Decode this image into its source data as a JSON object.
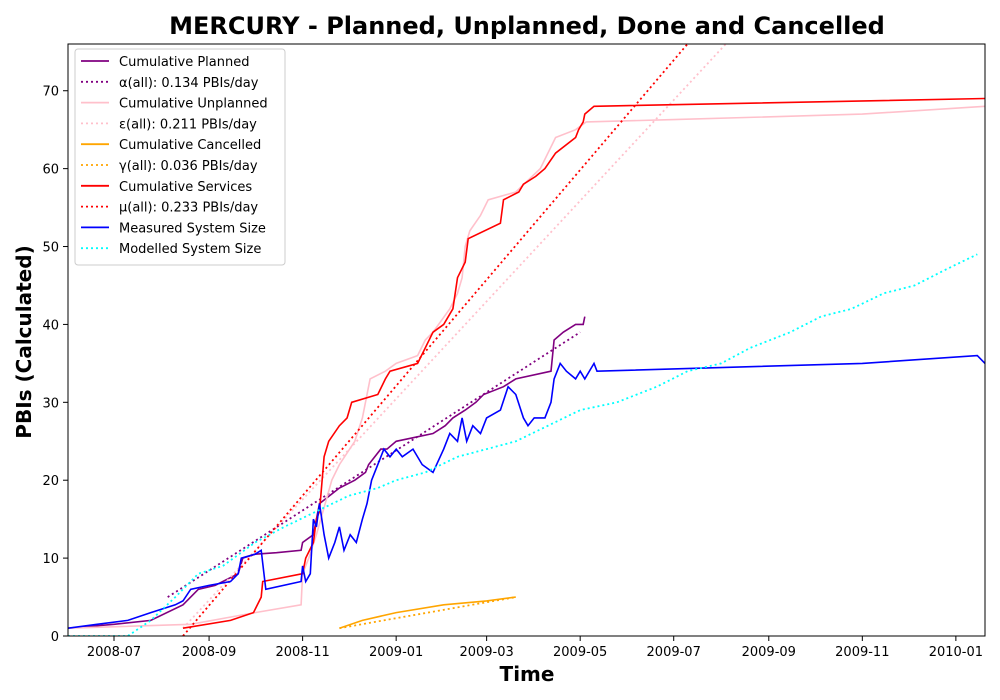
{
  "chart_data": {
    "type": "line",
    "title": "MERCURY - Planned, Unplanned, Done  and Cancelled",
    "xlabel": "Time",
    "ylabel": "PBIs (Calculated)",
    "xlim": [
      "2008-06-01",
      "2010-01-20"
    ],
    "ylim": [
      0,
      76
    ],
    "xticks": [
      "2008-07",
      "2008-09",
      "2008-11",
      "2009-01",
      "2009-03",
      "2009-05",
      "2009-07",
      "2009-09",
      "2009-11",
      "2010-01"
    ],
    "yticks": [
      0,
      10,
      20,
      30,
      40,
      50,
      60,
      70
    ],
    "legend_position": "top-left",
    "grid": false,
    "series": [
      {
        "name": "Cumulative Planned",
        "color": "#800080",
        "style": "solid",
        "points": [
          [
            "2008-06-01",
            1
          ],
          [
            "2008-07-01",
            1.5
          ],
          [
            "2008-07-25",
            2
          ],
          [
            "2008-08-15",
            4
          ],
          [
            "2008-08-25",
            6
          ],
          [
            "2008-09-05",
            6.5
          ],
          [
            "2008-09-20",
            8
          ],
          [
            "2008-09-23",
            10
          ],
          [
            "2008-10-01",
            10.5
          ],
          [
            "2008-10-15",
            10.7
          ],
          [
            "2008-10-31",
            11
          ],
          [
            "2008-11-01",
            12
          ],
          [
            "2008-11-08",
            13
          ],
          [
            "2008-11-10",
            15
          ],
          [
            "2008-11-12",
            17
          ],
          [
            "2008-11-25",
            19
          ],
          [
            "2008-12-05",
            20
          ],
          [
            "2008-12-12",
            21
          ],
          [
            "2008-12-14",
            22
          ],
          [
            "2008-12-22",
            24
          ],
          [
            "2008-12-26",
            24
          ],
          [
            "2009-01-01",
            25
          ],
          [
            "2009-01-25",
            26
          ],
          [
            "2009-02-02",
            27
          ],
          [
            "2009-02-07",
            28
          ],
          [
            "2009-02-15",
            29
          ],
          [
            "2009-02-22",
            30
          ],
          [
            "2009-02-27",
            31
          ],
          [
            "2009-03-12",
            32
          ],
          [
            "2009-03-20",
            33
          ],
          [
            "2009-04-12",
            34
          ],
          [
            "2009-04-14",
            38
          ],
          [
            "2009-04-20",
            39
          ],
          [
            "2009-04-28",
            40
          ],
          [
            "2009-05-03",
            40
          ],
          [
            "2009-05-04",
            41
          ]
        ]
      },
      {
        "name": "α(all): 0.134 PBIs/day",
        "color": "#800080",
        "style": "dotted",
        "points": [
          [
            "2008-08-05",
            5
          ],
          [
            "2009-05-01",
            39
          ]
        ]
      },
      {
        "name": "Cumulative Unplanned",
        "color": "#ffc0cb",
        "style": "solid",
        "points": [
          [
            "2008-06-01",
            1
          ],
          [
            "2008-08-20",
            1.5
          ],
          [
            "2008-10-01",
            3
          ],
          [
            "2008-10-31",
            4
          ],
          [
            "2008-11-01",
            8
          ],
          [
            "2008-11-05",
            10
          ],
          [
            "2008-11-10",
            13
          ],
          [
            "2008-11-20",
            20
          ],
          [
            "2008-11-25",
            22
          ],
          [
            "2008-12-05",
            25
          ],
          [
            "2008-12-10",
            28
          ],
          [
            "2008-12-15",
            33
          ],
          [
            "2008-12-25",
            34
          ],
          [
            "2009-01-01",
            35
          ],
          [
            "2009-01-15",
            36
          ],
          [
            "2009-01-20",
            38
          ],
          [
            "2009-01-25",
            39
          ],
          [
            "2009-02-05",
            42
          ],
          [
            "2009-02-10",
            44
          ],
          [
            "2009-02-13",
            46
          ],
          [
            "2009-02-15",
            50
          ],
          [
            "2009-02-18",
            52
          ],
          [
            "2009-02-25",
            54
          ],
          [
            "2009-03-02",
            56
          ],
          [
            "2009-03-20",
            57
          ],
          [
            "2009-04-05",
            60
          ],
          [
            "2009-04-15",
            64
          ],
          [
            "2009-04-28",
            65
          ],
          [
            "2009-05-05",
            66
          ],
          [
            "2009-07-01",
            66.3
          ],
          [
            "2009-11-01",
            67
          ],
          [
            "2010-01-20",
            68
          ]
        ]
      },
      {
        "name": "ε(all): 0.211 PBIs/day",
        "color": "#ffc0cb",
        "style": "dotted",
        "points": [
          [
            "2008-08-15",
            1
          ],
          [
            "2009-08-04",
            76
          ]
        ]
      },
      {
        "name": "Cumulative Cancelled",
        "color": "#ffa500",
        "style": "solid",
        "points": [
          [
            "2008-11-25",
            1
          ],
          [
            "2008-12-10",
            2
          ],
          [
            "2009-01-01",
            3
          ],
          [
            "2009-02-01",
            4
          ],
          [
            "2009-03-01",
            4.5
          ],
          [
            "2009-03-20",
            5
          ]
        ]
      },
      {
        "name": "γ(all): 0.036 PBIs/day",
        "color": "#ffa500",
        "style": "dotted",
        "points": [
          [
            "2008-11-25",
            1
          ],
          [
            "2009-03-20",
            5
          ]
        ]
      },
      {
        "name": "Cumulative Services",
        "color": "#ff0000",
        "style": "solid",
        "points": [
          [
            "2008-08-15",
            1
          ],
          [
            "2008-09-15",
            2
          ],
          [
            "2008-09-30",
            3
          ],
          [
            "2008-10-05",
            5
          ],
          [
            "2008-10-06",
            7
          ],
          [
            "2008-11-01",
            8
          ],
          [
            "2008-11-03",
            10
          ],
          [
            "2008-11-08",
            12
          ],
          [
            "2008-11-10",
            15
          ],
          [
            "2008-11-12",
            16
          ],
          [
            "2008-11-15",
            23
          ],
          [
            "2008-11-18",
            25
          ],
          [
            "2008-11-25",
            27
          ],
          [
            "2008-11-30",
            28
          ],
          [
            "2008-12-03",
            30
          ],
          [
            "2008-12-20",
            31
          ],
          [
            "2008-12-25",
            33
          ],
          [
            "2008-12-28",
            34
          ],
          [
            "2009-01-15",
            35
          ],
          [
            "2009-01-20",
            37
          ],
          [
            "2009-01-25",
            39
          ],
          [
            "2009-02-01",
            40
          ],
          [
            "2009-02-07",
            42
          ],
          [
            "2009-02-10",
            46
          ],
          [
            "2009-02-15",
            48
          ],
          [
            "2009-02-17",
            51
          ],
          [
            "2009-03-10",
            53
          ],
          [
            "2009-03-12",
            56
          ],
          [
            "2009-03-22",
            57
          ],
          [
            "2009-03-25",
            58
          ],
          [
            "2009-04-02",
            59
          ],
          [
            "2009-04-08",
            60
          ],
          [
            "2009-04-15",
            62
          ],
          [
            "2009-04-28",
            64
          ],
          [
            "2009-04-30",
            65
          ],
          [
            "2009-05-03",
            66
          ],
          [
            "2009-05-04",
            67
          ],
          [
            "2009-05-10",
            68
          ],
          [
            "2010-01-20",
            69
          ]
        ]
      },
      {
        "name": "μ(all): 0.233 PBIs/day",
        "color": "#ff0000",
        "style": "dotted",
        "points": [
          [
            "2008-08-15",
            0
          ],
          [
            "2009-07-10",
            76
          ]
        ]
      },
      {
        "name": "Measured System Size",
        "color": "#0000ff",
        "style": "solid",
        "points": [
          [
            "2008-06-01",
            1
          ],
          [
            "2008-06-20",
            1.5
          ],
          [
            "2008-07-10",
            2
          ],
          [
            "2008-07-25",
            3
          ],
          [
            "2008-08-10",
            4
          ],
          [
            "2008-08-15",
            4.5
          ],
          [
            "2008-08-20",
            6
          ],
          [
            "2008-09-01",
            6.5
          ],
          [
            "2008-09-15",
            7
          ],
          [
            "2008-09-20",
            8
          ],
          [
            "2008-09-22",
            10
          ],
          [
            "2008-10-01",
            10.5
          ],
          [
            "2008-10-05",
            11
          ],
          [
            "2008-10-08",
            6
          ],
          [
            "2008-10-31",
            7
          ],
          [
            "2008-11-01",
            9
          ],
          [
            "2008-11-03",
            7
          ],
          [
            "2008-11-06",
            8
          ],
          [
            "2008-11-08",
            15
          ],
          [
            "2008-11-10",
            14
          ],
          [
            "2008-11-12",
            17
          ],
          [
            "2008-11-15",
            13
          ],
          [
            "2008-11-18",
            10
          ],
          [
            "2008-11-22",
            12
          ],
          [
            "2008-11-25",
            14
          ],
          [
            "2008-11-28",
            11
          ],
          [
            "2008-12-02",
            13
          ],
          [
            "2008-12-06",
            12
          ],
          [
            "2008-12-10",
            15
          ],
          [
            "2008-12-13",
            17
          ],
          [
            "2008-12-16",
            20
          ],
          [
            "2008-12-20",
            22
          ],
          [
            "2008-12-24",
            24
          ],
          [
            "2008-12-28",
            23
          ],
          [
            "2009-01-01",
            24
          ],
          [
            "2009-01-05",
            23
          ],
          [
            "2009-01-12",
            24
          ],
          [
            "2009-01-18",
            22
          ],
          [
            "2009-01-25",
            21
          ],
          [
            "2009-02-01",
            24
          ],
          [
            "2009-02-05",
            26
          ],
          [
            "2009-02-10",
            25
          ],
          [
            "2009-02-13",
            28
          ],
          [
            "2009-02-16",
            25
          ],
          [
            "2009-02-20",
            27
          ],
          [
            "2009-02-25",
            26
          ],
          [
            "2009-03-01",
            28
          ],
          [
            "2009-03-10",
            29
          ],
          [
            "2009-03-15",
            32
          ],
          [
            "2009-03-20",
            31
          ],
          [
            "2009-03-25",
            28
          ],
          [
            "2009-03-28",
            27
          ],
          [
            "2009-04-01",
            28
          ],
          [
            "2009-04-08",
            28
          ],
          [
            "2009-04-12",
            30
          ],
          [
            "2009-04-14",
            33
          ],
          [
            "2009-04-18",
            35
          ],
          [
            "2009-04-22",
            34
          ],
          [
            "2009-04-28",
            33
          ],
          [
            "2009-05-01",
            34
          ],
          [
            "2009-05-04",
            33
          ],
          [
            "2009-05-10",
            35
          ],
          [
            "2009-05-12",
            34
          ],
          [
            "2009-11-01",
            35
          ],
          [
            "2010-01-15",
            36
          ],
          [
            "2010-01-20",
            35
          ]
        ]
      },
      {
        "name": "Modelled System Size",
        "color": "#00ffff",
        "style": "dotted",
        "points": [
          [
            "2008-06-01",
            0
          ],
          [
            "2008-07-10",
            0
          ],
          [
            "2008-07-25",
            2
          ],
          [
            "2008-08-10",
            5
          ],
          [
            "2008-08-25",
            8
          ],
          [
            "2008-09-10",
            9
          ],
          [
            "2008-10-01",
            12
          ],
          [
            "2008-10-20",
            14
          ],
          [
            "2008-11-10",
            16
          ],
          [
            "2008-12-01",
            18
          ],
          [
            "2008-12-20",
            19
          ],
          [
            "2009-01-01",
            20
          ],
          [
            "2009-01-20",
            21
          ],
          [
            "2009-02-10",
            23
          ],
          [
            "2009-03-01",
            24
          ],
          [
            "2009-03-20",
            25
          ],
          [
            "2009-04-10",
            27
          ],
          [
            "2009-05-01",
            29
          ],
          [
            "2009-05-25",
            30
          ],
          [
            "2009-06-20",
            32
          ],
          [
            "2009-07-10",
            34
          ],
          [
            "2009-08-01",
            35
          ],
          [
            "2009-08-20",
            37
          ],
          [
            "2009-09-15",
            39
          ],
          [
            "2009-10-05",
            41
          ],
          [
            "2009-10-25",
            42
          ],
          [
            "2009-11-15",
            44
          ],
          [
            "2009-12-05",
            45
          ],
          [
            "2009-12-25",
            47
          ],
          [
            "2010-01-15",
            49
          ]
        ]
      }
    ]
  }
}
